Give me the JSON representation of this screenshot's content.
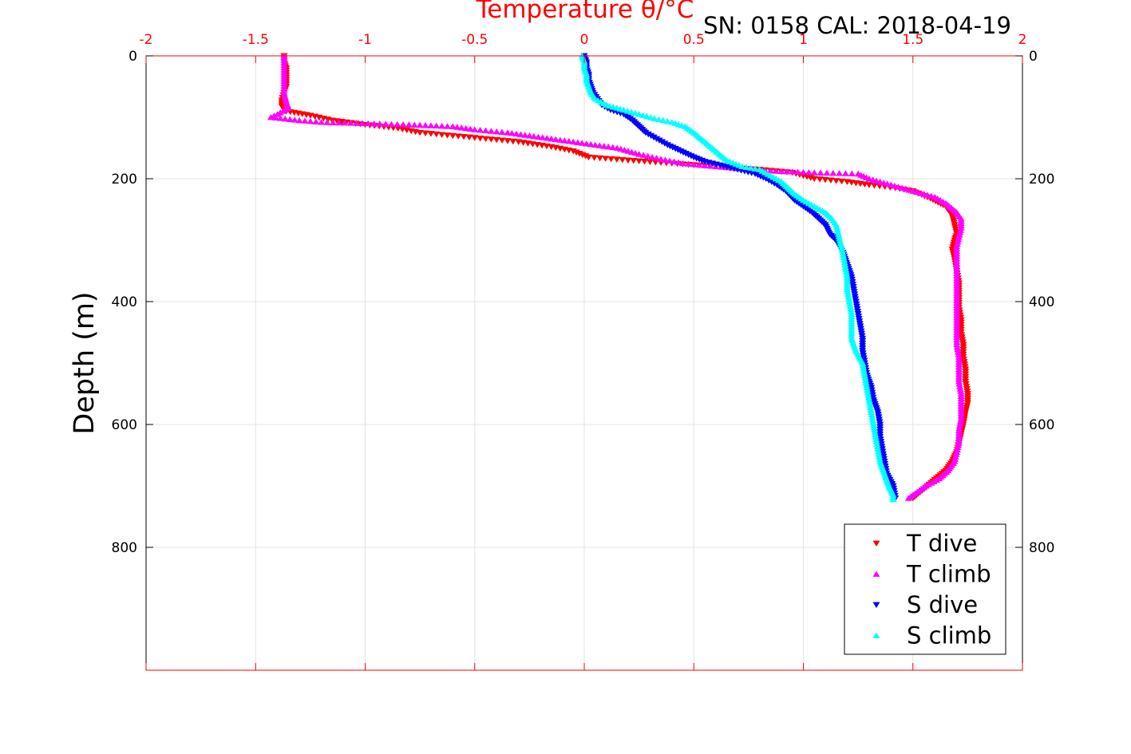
{
  "chart_data": {
    "type": "scatter",
    "title": "Temperature θ/°C",
    "subtitle": "SN: 0158  CAL: 2018-04-19",
    "xlabel": "Temperature θ/°C",
    "ylabel": "Depth (m)",
    "xlim": [
      -2,
      2
    ],
    "ylim": [
      0,
      1000
    ],
    "y_reversed": true,
    "x_ticks": [
      -2,
      -1.5,
      -1,
      -0.5,
      0,
      0.5,
      1,
      1.5,
      2
    ],
    "x_tick_labels": [
      "-2",
      "-1.5",
      "-1",
      "-0.5",
      "0",
      "0.5",
      "1",
      "1.5",
      "2"
    ],
    "y_ticks": [
      0,
      200,
      400,
      600,
      800
    ],
    "y_tick_labels": [
      "0",
      "200",
      "400",
      "600",
      "800"
    ],
    "grid": true,
    "legend_position": "bottom-right",
    "x_axis_color": "#ff0000",
    "series": [
      {
        "name": "T dive",
        "color": "#ff0000",
        "marker": "triangle-down",
        "points": [
          [
            -1.37,
            0
          ],
          [
            -1.37,
            10
          ],
          [
            -1.36,
            20
          ],
          [
            -1.36,
            35
          ],
          [
            -1.36,
            50
          ],
          [
            -1.37,
            60
          ],
          [
            -1.38,
            72
          ],
          [
            -1.38,
            82
          ],
          [
            -1.36,
            90
          ],
          [
            -1.25,
            97
          ],
          [
            -1.15,
            105
          ],
          [
            -1.0,
            112
          ],
          [
            -0.85,
            118
          ],
          [
            -0.75,
            125
          ],
          [
            -0.6,
            130
          ],
          [
            -0.45,
            135
          ],
          [
            -0.3,
            140
          ],
          [
            -0.15,
            148
          ],
          [
            -0.05,
            155
          ],
          [
            0.02,
            165
          ],
          [
            0.2,
            170
          ],
          [
            0.4,
            175
          ],
          [
            0.6,
            180
          ],
          [
            0.8,
            185
          ],
          [
            0.95,
            190
          ],
          [
            1.05,
            200
          ],
          [
            1.2,
            205
          ],
          [
            1.3,
            210
          ],
          [
            1.42,
            215
          ],
          [
            1.5,
            220
          ],
          [
            1.58,
            232
          ],
          [
            1.65,
            245
          ],
          [
            1.68,
            260
          ],
          [
            1.69,
            275
          ],
          [
            1.7,
            290
          ],
          [
            1.69,
            300
          ],
          [
            1.68,
            315
          ],
          [
            1.69,
            330
          ],
          [
            1.7,
            350
          ],
          [
            1.71,
            370
          ],
          [
            1.71,
            390
          ],
          [
            1.71,
            410
          ],
          [
            1.72,
            430
          ],
          [
            1.72,
            450
          ],
          [
            1.73,
            470
          ],
          [
            1.73,
            490
          ],
          [
            1.74,
            510
          ],
          [
            1.74,
            530
          ],
          [
            1.75,
            550
          ],
          [
            1.75,
            565
          ],
          [
            1.74,
            580
          ],
          [
            1.73,
            600
          ],
          [
            1.72,
            615
          ],
          [
            1.71,
            630
          ],
          [
            1.7,
            645
          ],
          [
            1.68,
            660
          ],
          [
            1.65,
            675
          ],
          [
            1.6,
            690
          ],
          [
            1.55,
            705
          ],
          [
            1.5,
            720
          ]
        ]
      },
      {
        "name": "T climb",
        "color": "#ff00ff",
        "marker": "triangle-up",
        "points": [
          [
            -1.37,
            0
          ],
          [
            -1.37,
            15
          ],
          [
            -1.37,
            30
          ],
          [
            -1.37,
            45
          ],
          [
            -1.37,
            60
          ],
          [
            -1.36,
            75
          ],
          [
            -1.35,
            85
          ],
          [
            -1.4,
            95
          ],
          [
            -1.43,
            100
          ],
          [
            -1.3,
            105
          ],
          [
            -1.2,
            108
          ],
          [
            -0.8,
            112
          ],
          [
            -0.6,
            115
          ],
          [
            -0.5,
            120
          ],
          [
            -0.35,
            125
          ],
          [
            -0.25,
            130
          ],
          [
            -0.15,
            135
          ],
          [
            -0.05,
            140
          ],
          [
            0.05,
            145
          ],
          [
            0.15,
            150
          ],
          [
            0.25,
            160
          ],
          [
            0.35,
            168
          ],
          [
            0.45,
            175
          ],
          [
            0.6,
            180
          ],
          [
            0.75,
            185
          ],
          [
            0.9,
            188
          ],
          [
            1.05,
            190
          ],
          [
            1.25,
            192
          ],
          [
            1.3,
            200
          ],
          [
            1.4,
            210
          ],
          [
            1.5,
            220
          ],
          [
            1.6,
            230
          ],
          [
            1.65,
            240
          ],
          [
            1.7,
            255
          ],
          [
            1.72,
            265
          ],
          [
            1.72,
            280
          ],
          [
            1.71,
            295
          ],
          [
            1.7,
            310
          ],
          [
            1.7,
            330
          ],
          [
            1.7,
            350
          ],
          [
            1.7,
            370
          ],
          [
            1.7,
            390
          ],
          [
            1.7,
            410
          ],
          [
            1.7,
            430
          ],
          [
            1.7,
            450
          ],
          [
            1.7,
            470
          ],
          [
            1.71,
            490
          ],
          [
            1.71,
            510
          ],
          [
            1.71,
            530
          ],
          [
            1.72,
            550
          ],
          [
            1.72,
            570
          ],
          [
            1.72,
            590
          ],
          [
            1.71,
            610
          ],
          [
            1.71,
            630
          ],
          [
            1.7,
            645
          ],
          [
            1.69,
            660
          ],
          [
            1.66,
            675
          ],
          [
            1.62,
            688
          ],
          [
            1.56,
            700
          ],
          [
            1.52,
            710
          ],
          [
            1.48,
            720
          ]
        ]
      },
      {
        "name": "S dive",
        "color": "#0000ff",
        "marker": "triangle-down",
        "points": [
          [
            0.0,
            0
          ],
          [
            0.01,
            10
          ],
          [
            0.01,
            20
          ],
          [
            0.02,
            30
          ],
          [
            0.02,
            40
          ],
          [
            0.03,
            50
          ],
          [
            0.04,
            60
          ],
          [
            0.06,
            70
          ],
          [
            0.08,
            80
          ],
          [
            0.12,
            88
          ],
          [
            0.18,
            95
          ],
          [
            0.22,
            105
          ],
          [
            0.25,
            115
          ],
          [
            0.28,
            125
          ],
          [
            0.33,
            135
          ],
          [
            0.38,
            145
          ],
          [
            0.44,
            155
          ],
          [
            0.5,
            165
          ],
          [
            0.55,
            172
          ],
          [
            0.62,
            178
          ],
          [
            0.7,
            185
          ],
          [
            0.78,
            192
          ],
          [
            0.83,
            200
          ],
          [
            0.88,
            210
          ],
          [
            0.92,
            220
          ],
          [
            0.96,
            235
          ],
          [
            1.0,
            245
          ],
          [
            1.04,
            255
          ],
          [
            1.07,
            265
          ],
          [
            1.1,
            275
          ],
          [
            1.12,
            290
          ],
          [
            1.15,
            300
          ],
          [
            1.18,
            320
          ],
          [
            1.2,
            340
          ],
          [
            1.22,
            360
          ],
          [
            1.23,
            380
          ],
          [
            1.24,
            400
          ],
          [
            1.25,
            420
          ],
          [
            1.26,
            440
          ],
          [
            1.27,
            460
          ],
          [
            1.27,
            480
          ],
          [
            1.28,
            500
          ],
          [
            1.29,
            520
          ],
          [
            1.31,
            540
          ],
          [
            1.32,
            560
          ],
          [
            1.34,
            580
          ],
          [
            1.35,
            600
          ],
          [
            1.35,
            620
          ],
          [
            1.36,
            640
          ],
          [
            1.37,
            660
          ],
          [
            1.38,
            680
          ],
          [
            1.41,
            700
          ],
          [
            1.42,
            720
          ]
        ]
      },
      {
        "name": "S climb",
        "color": "#00ffff",
        "marker": "triangle-up",
        "points": [
          [
            -0.01,
            0
          ],
          [
            0.0,
            10
          ],
          [
            0.0,
            20
          ],
          [
            0.01,
            30
          ],
          [
            0.01,
            40
          ],
          [
            0.02,
            50
          ],
          [
            0.03,
            60
          ],
          [
            0.05,
            70
          ],
          [
            0.1,
            80
          ],
          [
            0.18,
            88
          ],
          [
            0.25,
            95
          ],
          [
            0.32,
            102
          ],
          [
            0.4,
            108
          ],
          [
            0.46,
            115
          ],
          [
            0.5,
            125
          ],
          [
            0.55,
            140
          ],
          [
            0.6,
            155
          ],
          [
            0.65,
            170
          ],
          [
            0.72,
            180
          ],
          [
            0.8,
            185
          ],
          [
            0.85,
            195
          ],
          [
            0.9,
            205
          ],
          [
            0.93,
            215
          ],
          [
            0.96,
            225
          ],
          [
            1.0,
            235
          ],
          [
            1.05,
            245
          ],
          [
            1.1,
            255
          ],
          [
            1.13,
            265
          ],
          [
            1.15,
            275
          ],
          [
            1.16,
            290
          ],
          [
            1.17,
            305
          ],
          [
            1.18,
            320
          ],
          [
            1.19,
            340
          ],
          [
            1.2,
            360
          ],
          [
            1.2,
            380
          ],
          [
            1.21,
            400
          ],
          [
            1.22,
            420
          ],
          [
            1.22,
            440
          ],
          [
            1.22,
            460
          ],
          [
            1.24,
            480
          ],
          [
            1.27,
            500
          ],
          [
            1.28,
            520
          ],
          [
            1.29,
            540
          ],
          [
            1.3,
            560
          ],
          [
            1.31,
            580
          ],
          [
            1.32,
            600
          ],
          [
            1.33,
            620
          ],
          [
            1.34,
            640
          ],
          [
            1.35,
            660
          ],
          [
            1.37,
            680
          ],
          [
            1.39,
            700
          ],
          [
            1.41,
            715
          ],
          [
            1.41,
            722
          ]
        ]
      }
    ]
  }
}
